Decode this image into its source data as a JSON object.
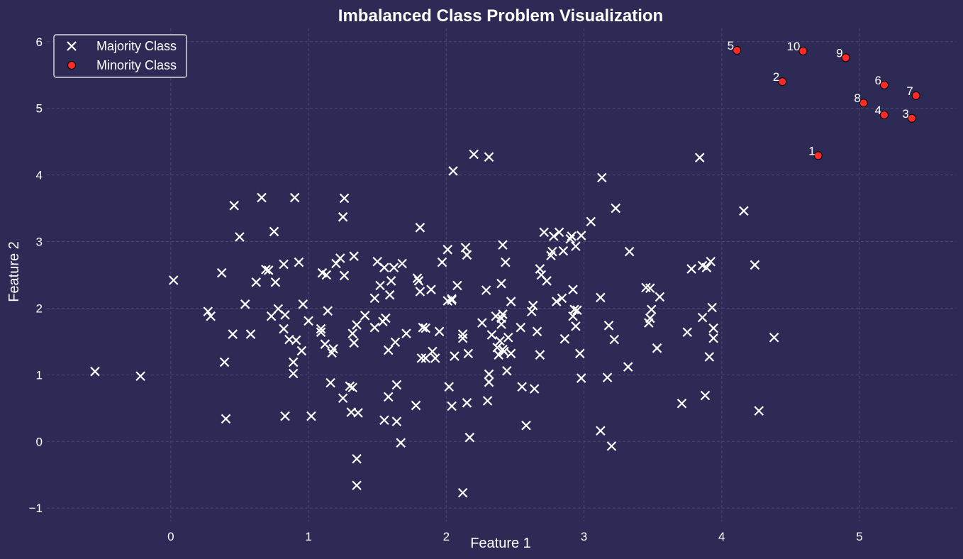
{
  "chart_data": {
    "type": "scatter",
    "title": "Imbalanced Class Problem Visualization",
    "xlabel": "Feature 1",
    "ylabel": "Feature 2",
    "xlim": [
      -0.9,
      5.7
    ],
    "ylim": [
      -1.2,
      6.2
    ],
    "x_ticks": [
      0,
      1,
      2,
      3,
      4,
      5
    ],
    "y_ticks": [
      -1,
      0,
      1,
      2,
      3,
      4,
      5,
      6
    ],
    "grid": true,
    "legend_position": "top-left",
    "colors": {
      "background": "#2d2b55",
      "majority": "#ffffff",
      "minority": "#ff2b2b",
      "minority_edge": "#000000"
    },
    "series": [
      {
        "name": "Majority Class",
        "marker": "x",
        "points": [
          [
            -0.55,
            1.05
          ],
          [
            -0.22,
            0.98
          ],
          [
            0.02,
            2.42
          ],
          [
            0.27,
            1.95
          ],
          [
            0.29,
            1.88
          ],
          [
            0.37,
            2.53
          ],
          [
            0.39,
            1.19
          ],
          [
            0.4,
            0.34
          ],
          [
            0.45,
            1.61
          ],
          [
            0.46,
            3.54
          ],
          [
            0.5,
            3.07
          ],
          [
            0.54,
            2.06
          ],
          [
            0.58,
            1.61
          ],
          [
            0.62,
            2.39
          ],
          [
            0.66,
            3.66
          ],
          [
            0.69,
            2.58
          ],
          [
            0.71,
            2.57
          ],
          [
            0.73,
            1.88
          ],
          [
            0.75,
            3.15
          ],
          [
            0.76,
            2.39
          ],
          [
            0.78,
            1.99
          ],
          [
            0.82,
            1.69
          ],
          [
            0.82,
            2.66
          ],
          [
            0.83,
            1.9
          ],
          [
            0.83,
            0.38
          ],
          [
            0.86,
            1.53
          ],
          [
            0.89,
            1.19
          ],
          [
            0.89,
            1.02
          ],
          [
            0.9,
            3.66
          ],
          [
            0.91,
            1.52
          ],
          [
            0.93,
            2.69
          ],
          [
            0.95,
            1.36
          ],
          [
            0.96,
            2.06
          ],
          [
            1.0,
            1.81
          ],
          [
            1.02,
            0.38
          ],
          [
            1.09,
            1.69
          ],
          [
            1.09,
            1.64
          ],
          [
            1.1,
            2.53
          ],
          [
            1.12,
            1.46
          ],
          [
            1.13,
            2.5
          ],
          [
            1.14,
            1.96
          ],
          [
            1.16,
            0.88
          ],
          [
            1.17,
            1.33
          ],
          [
            1.18,
            1.39
          ],
          [
            1.2,
            2.67
          ],
          [
            1.23,
            2.75
          ],
          [
            1.25,
            3.37
          ],
          [
            1.25,
            0.65
          ],
          [
            1.26,
            2.49
          ],
          [
            1.26,
            3.65
          ],
          [
            1.3,
            0.83
          ],
          [
            1.31,
            0.44
          ],
          [
            1.32,
            1.62
          ],
          [
            1.32,
            0.81
          ],
          [
            1.33,
            2.78
          ],
          [
            1.33,
            1.48
          ],
          [
            1.35,
            1.75
          ],
          [
            1.35,
            -0.26
          ],
          [
            1.35,
            -0.66
          ],
          [
            1.36,
            0.43
          ],
          [
            1.41,
            1.89
          ],
          [
            1.48,
            1.71
          ],
          [
            1.48,
            2.15
          ],
          [
            1.5,
            2.7
          ],
          [
            1.52,
            2.34
          ],
          [
            1.54,
            1.8
          ],
          [
            1.55,
            0.32
          ],
          [
            1.55,
            2.61
          ],
          [
            1.56,
            1.85
          ],
          [
            1.58,
            0.67
          ],
          [
            1.58,
            1.37
          ],
          [
            1.59,
            2.2
          ],
          [
            1.6,
            2.41
          ],
          [
            1.62,
            2.61
          ],
          [
            1.63,
            1.49
          ],
          [
            1.64,
            0.3
          ],
          [
            1.64,
            0.85
          ],
          [
            1.67,
            -0.02
          ],
          [
            1.68,
            2.67
          ],
          [
            1.71,
            1.62
          ],
          [
            1.78,
            0.54
          ],
          [
            1.79,
            2.45
          ],
          [
            1.8,
            2.41
          ],
          [
            1.81,
            3.21
          ],
          [
            1.81,
            2.25
          ],
          [
            1.82,
            1.25
          ],
          [
            1.83,
            1.71
          ],
          [
            1.85,
            1.7
          ],
          [
            1.85,
            1.25
          ],
          [
            1.89,
            2.28
          ],
          [
            1.9,
            1.35
          ],
          [
            1.92,
            1.25
          ],
          [
            1.95,
            1.65
          ],
          [
            1.97,
            2.69
          ],
          [
            2.01,
            2.88
          ],
          [
            2.01,
            2.11
          ],
          [
            2.02,
            0.82
          ],
          [
            2.04,
            2.14
          ],
          [
            2.04,
            2.12
          ],
          [
            2.04,
            0.53
          ],
          [
            2.05,
            4.06
          ],
          [
            2.06,
            1.28
          ],
          [
            2.08,
            2.34
          ],
          [
            2.12,
            1.61
          ],
          [
            2.12,
            1.55
          ],
          [
            2.12,
            -0.77
          ],
          [
            2.14,
            2.91
          ],
          [
            2.15,
            2.8
          ],
          [
            2.15,
            0.58
          ],
          [
            2.16,
            1.32
          ],
          [
            2.17,
            0.06
          ],
          [
            2.2,
            4.31
          ],
          [
            2.26,
            1.78
          ],
          [
            2.29,
            2.27
          ],
          [
            2.3,
            0.61
          ],
          [
            2.31,
            4.27
          ],
          [
            2.31,
            1.01
          ],
          [
            2.31,
            0.89
          ],
          [
            2.33,
            1.6
          ],
          [
            2.36,
            1.88
          ],
          [
            2.37,
            1.41
          ],
          [
            2.38,
            1.3
          ],
          [
            2.39,
            1.51
          ],
          [
            2.4,
            1.85
          ],
          [
            2.4,
            2.37
          ],
          [
            2.4,
            1.76
          ],
          [
            2.41,
            2.95
          ],
          [
            2.41,
            1.38
          ],
          [
            2.41,
            1.91
          ],
          [
            2.42,
            1.35
          ],
          [
            2.43,
            2.69
          ],
          [
            2.44,
            1.06
          ],
          [
            2.45,
            1.56
          ],
          [
            2.47,
            2.1
          ],
          [
            2.47,
            1.32
          ],
          [
            2.54,
            1.71
          ],
          [
            2.55,
            0.82
          ],
          [
            2.58,
            0.24
          ],
          [
            2.62,
            1.95
          ],
          [
            2.63,
            2.04
          ],
          [
            2.64,
            0.79
          ],
          [
            2.66,
            1.65
          ],
          [
            2.68,
            1.3
          ],
          [
            2.68,
            2.59
          ],
          [
            2.69,
            2.5
          ],
          [
            2.71,
            3.14
          ],
          [
            2.73,
            2.41
          ],
          [
            2.76,
            2.79
          ],
          [
            2.77,
            2.85
          ],
          [
            2.78,
            3.08
          ],
          [
            2.8,
            2.1
          ],
          [
            2.82,
            3.14
          ],
          [
            2.84,
            2.15
          ],
          [
            2.85,
            2.86
          ],
          [
            2.86,
            1.54
          ],
          [
            2.9,
            3.04
          ],
          [
            2.91,
            3.08
          ],
          [
            2.92,
            2.28
          ],
          [
            2.92,
            1.88
          ],
          [
            2.93,
            1.98
          ],
          [
            2.94,
            2.93
          ],
          [
            2.94,
            1.73
          ],
          [
            2.95,
            1.97
          ],
          [
            2.97,
            1.32
          ],
          [
            2.98,
            3.09
          ],
          [
            2.98,
            0.95
          ],
          [
            3.05,
            3.3
          ],
          [
            3.12,
            2.16
          ],
          [
            3.12,
            0.16
          ],
          [
            3.13,
            3.96
          ],
          [
            3.17,
            0.96
          ],
          [
            3.18,
            1.74
          ],
          [
            3.2,
            -0.07
          ],
          [
            3.22,
            1.53
          ],
          [
            3.23,
            3.5
          ],
          [
            3.32,
            1.12
          ],
          [
            3.33,
            2.85
          ],
          [
            3.45,
            2.31
          ],
          [
            3.47,
            1.78
          ],
          [
            3.48,
            2.3
          ],
          [
            3.48,
            1.85
          ],
          [
            3.49,
            1.98
          ],
          [
            3.53,
            1.4
          ],
          [
            3.55,
            2.17
          ],
          [
            3.71,
            0.57
          ],
          [
            3.75,
            1.64
          ],
          [
            3.78,
            2.59
          ],
          [
            3.84,
            4.26
          ],
          [
            3.86,
            2.64
          ],
          [
            3.86,
            1.86
          ],
          [
            3.88,
            0.69
          ],
          [
            3.89,
            2.61
          ],
          [
            3.91,
            1.27
          ],
          [
            3.92,
            2.7
          ],
          [
            3.93,
            2.01
          ],
          [
            3.94,
            1.55
          ],
          [
            3.94,
            1.7
          ],
          [
            4.16,
            3.46
          ],
          [
            4.24,
            2.65
          ],
          [
            4.27,
            0.46
          ],
          [
            4.38,
            1.56
          ]
        ]
      },
      {
        "name": "Minority Class",
        "marker": "o",
        "points": [
          {
            "x": 4.7,
            "y": 4.29,
            "label": "1"
          },
          {
            "x": 4.44,
            "y": 5.4,
            "label": "2"
          },
          {
            "x": 5.38,
            "y": 4.85,
            "label": "3"
          },
          {
            "x": 5.18,
            "y": 4.9,
            "label": "4"
          },
          {
            "x": 4.11,
            "y": 5.87,
            "label": "5"
          },
          {
            "x": 5.18,
            "y": 5.35,
            "label": "6"
          },
          {
            "x": 5.41,
            "y": 5.19,
            "label": "7"
          },
          {
            "x": 5.03,
            "y": 5.08,
            "label": "8"
          },
          {
            "x": 4.9,
            "y": 5.76,
            "label": "9"
          },
          {
            "x": 4.59,
            "y": 5.86,
            "label": "10"
          }
        ]
      }
    ]
  }
}
